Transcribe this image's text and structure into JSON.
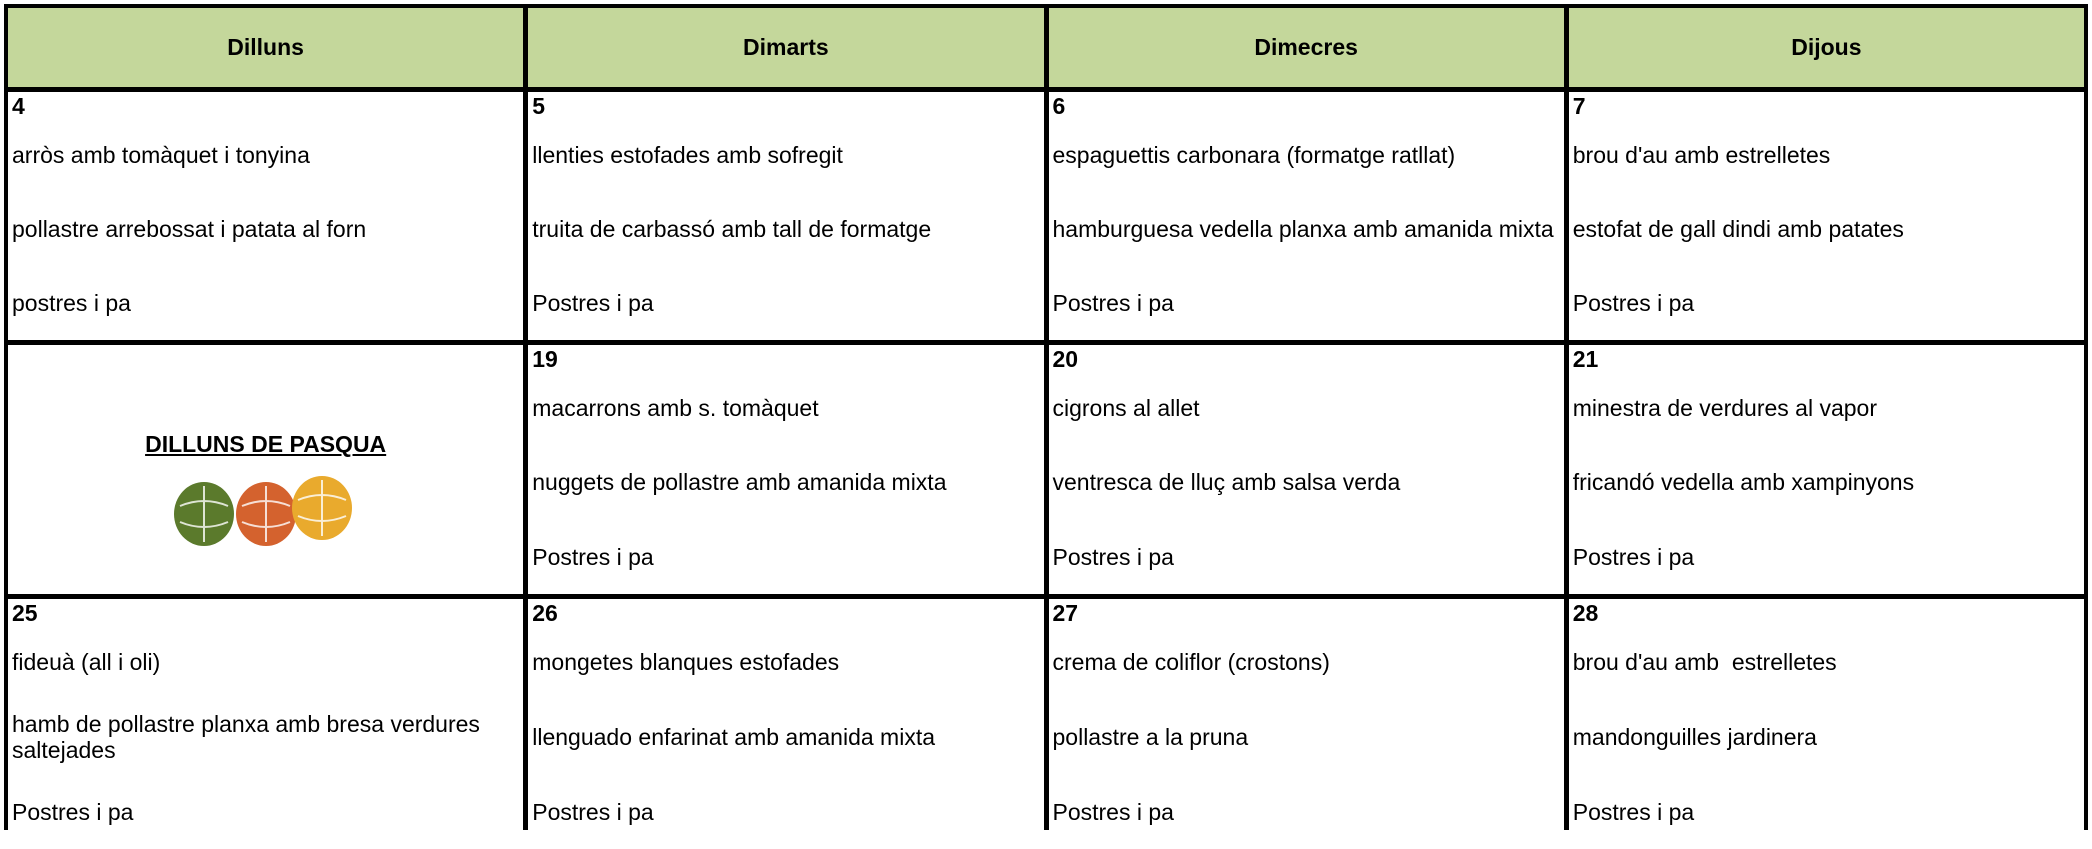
{
  "header": {
    "days": [
      "Dilluns",
      "Dimarts",
      "Dimecres",
      "Dijous"
    ]
  },
  "weeks": [
    [
      {
        "day": "4",
        "lines": [
          "arròs amb tomàquet i tonyina",
          "pollastre arrebossat i patata al forn",
          "postres i pa"
        ]
      },
      {
        "day": "5",
        "lines": [
          "llenties estofades amb sofregit",
          "truita de carbassó amb tall de formatge",
          "Postres i pa"
        ]
      },
      {
        "day": "6",
        "lines": [
          "espaguettis carbonara (formatge ratllat)",
          "hamburguesa vedella planxa amb amanida mixta",
          "Postres i pa"
        ]
      },
      {
        "day": "7",
        "lines": [
          "brou d'au amb estrelletes",
          "estofat de gall dindi amb patates",
          "Postres i pa"
        ]
      }
    ],
    [
      {
        "label": "DILLUNS DE PASQUA"
      },
      {
        "day": "19",
        "lines": [
          "macarrons amb s. tomàquet",
          "nuggets de pollastre amb amanida mixta",
          "Postres i pa"
        ]
      },
      {
        "day": "20",
        "lines": [
          "cigrons al allet",
          "ventresca de lluç amb salsa verda",
          "Postres i pa"
        ]
      },
      {
        "day": "21",
        "lines": [
          "minestra de verdures al vapor",
          "fricandó vedella amb xampinyons",
          "Postres i pa"
        ]
      }
    ],
    [
      {
        "day": "25",
        "lines": [
          "fideuà (all i oli)",
          "hamb de pollastre planxa amb bresa verdures saltejades",
          "Postres i pa"
        ]
      },
      {
        "day": "26",
        "lines": [
          "mongetes blanques estofades",
          "llenguado enfarinat amb amanida mixta",
          "Postres i pa"
        ]
      },
      {
        "day": "27",
        "lines": [
          "crema de coliflor (crostons)",
          "pollastre a la pruna",
          "Postres i pa"
        ]
      },
      {
        "day": "28",
        "lines": [
          "brou d'au amb  estrelletes",
          "mandonguilles jardinera",
          "Postres i pa"
        ]
      }
    ]
  ]
}
